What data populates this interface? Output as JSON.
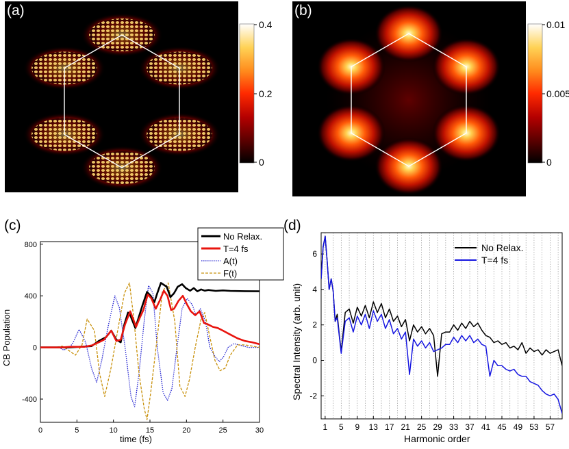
{
  "colors": {
    "black": "#000000",
    "red": "#e8140e",
    "blue_dotted": "#2020d0",
    "orange_dashed": "#c8900a",
    "blue_line": "#1515e0",
    "hexagon": "#ffffff",
    "colormap": [
      "#000000",
      "#5a0000",
      "#b40000",
      "#ff2a00",
      "#ff8a1c",
      "#ffd255",
      "#ffffff"
    ]
  },
  "panels": {
    "a": {
      "label": "(a)",
      "colorbar_ticks": [
        "0.4",
        "0.2",
        "0"
      ],
      "chart_data": {
        "type": "heatmap",
        "title": "",
        "colorbar_range": [
          0,
          0.4
        ],
        "colorbar_ticks": [
          0,
          0.2,
          0.4
        ],
        "hexagon_overlay": true,
        "texture": "fine-fringes"
      }
    },
    "b": {
      "label": "(b)",
      "colorbar_ticks": [
        "0.01",
        "0.005",
        "0"
      ],
      "chart_data": {
        "type": "heatmap",
        "title": "",
        "colorbar_range": [
          0,
          0.01
        ],
        "colorbar_ticks": [
          0,
          0.005,
          0.01
        ],
        "hexagon_overlay": true,
        "texture": "smooth"
      }
    },
    "c": {
      "label": "(c)",
      "xlabel": "time (fs)",
      "ylabel": "CB Population",
      "xticks": [
        "0",
        "5",
        "10",
        "15",
        "20",
        "25",
        "30"
      ],
      "yticks": [
        "800",
        "400",
        "0",
        "-400"
      ],
      "legend": [
        "No Relax.",
        "T=4 fs",
        "A(t)",
        "F(t)"
      ],
      "chart_data": {
        "type": "line",
        "xlim": [
          0,
          30
        ],
        "ylim": [
          -580,
          820
        ],
        "legend_position": "top-right",
        "series": [
          {
            "name": "No Relax.",
            "style": "solid",
            "x": [
              0,
              4,
              7,
              8,
              9,
              9.7,
              10.4,
              11,
              11.5,
              12,
              12.3,
              13,
              13.5,
              14,
              14.6,
              15.1,
              15.6,
              16,
              16.5,
              17.3,
              17.8,
              18.3,
              18.8,
              19.4,
              19.9,
              20.5,
              21,
              21.5,
              22,
              22.5,
              23,
              24,
              25,
              26,
              28,
              30
            ],
            "y": [
              0,
              0,
              10,
              50,
              80,
              130,
              60,
              40,
              180,
              270,
              250,
              150,
              240,
              330,
              430,
              400,
              350,
              420,
              500,
              470,
              390,
              420,
              470,
              490,
              460,
              440,
              460,
              435,
              450,
              440,
              445,
              438,
              442,
              438,
              436,
              435
            ]
          },
          {
            "name": "T=4 fs",
            "style": "solid",
            "x": [
              0,
              3,
              4,
              6,
              7,
              8,
              8.7,
              9.7,
              10.4,
              11,
              11.6,
              12.3,
              13.1,
              13.6,
              14.1,
              14.7,
              15.2,
              15.8,
              16.4,
              16.9,
              17.4,
              17.9,
              18.3,
              18.9,
              19.5,
              20.1,
              20.6,
              21.2,
              21.8,
              22.4,
              22.9,
              23.6,
              24.3,
              25,
              26,
              27,
              28,
              29,
              30
            ],
            "y": [
              0,
              0,
              5,
              5,
              15,
              40,
              60,
              130,
              50,
              60,
              180,
              280,
              160,
              230,
              290,
              410,
              380,
              300,
              370,
              440,
              400,
              290,
              300,
              360,
              400,
              330,
              280,
              250,
              280,
              190,
              180,
              160,
              150,
              130,
              100,
              70,
              50,
              40,
              25
            ]
          },
          {
            "name": "A(t)",
            "style": "dotted",
            "x": [
              0,
              2.5,
              3.2,
              4,
              4.5,
              5.3,
              6.2,
              7,
              7.7,
              8.4,
              9.3,
              10.2,
              10.8,
              11.6,
              12.4,
              12.9,
              13.5,
              14.2,
              14.8,
              15.4,
              16,
              16.8,
              17.4,
              18,
              18.7,
              19.4,
              20.1,
              20.8,
              21.3,
              21.9,
              22.6,
              23.2,
              23.9,
              24.5,
              25.1,
              25.7,
              26.5,
              27.5,
              28.5,
              30
            ],
            "y": [
              0,
              0,
              -20,
              0,
              40,
              140,
              40,
              -160,
              -270,
              -100,
              170,
              400,
              310,
              0,
              -380,
              -460,
              -200,
              200,
              480,
              420,
              0,
              -350,
              -410,
              -320,
              0,
              300,
              380,
              330,
              250,
              300,
              200,
              0,
              -70,
              -110,
              -70,
              0,
              30,
              15,
              0,
              0
            ]
          },
          {
            "name": "F(t)",
            "style": "dashed",
            "x": [
              0,
              2,
              3,
              3.8,
              4.8,
              5.7,
              6.4,
              7.4,
              8.1,
              8.8,
              9.7,
              10.8,
              11.5,
              12.2,
              12.8,
              13.5,
              14.2,
              14.6,
              15.1,
              16,
              16.7,
              17.5,
              18.4,
              19.1,
              19.8,
              20.4,
              21.2,
              22,
              22.5,
              23.2,
              23.9,
              24.6,
              25.3,
              26,
              27,
              28,
              29,
              30
            ],
            "y": [
              0,
              0,
              10,
              -20,
              -60,
              20,
              220,
              130,
              -200,
              -380,
              -150,
              200,
              420,
              500,
              220,
              -200,
              -470,
              -560,
              -350,
              80,
              430,
              500,
              200,
              -300,
              -380,
              -250,
              0,
              220,
              270,
              80,
              -100,
              -180,
              -160,
              -60,
              20,
              20,
              10,
              0
            ]
          }
        ]
      }
    },
    "d": {
      "label": "(d)",
      "xlabel": "Harmonic order",
      "ylabel": "Spectral Intensity (arb. unit)",
      "xticks": [
        "1",
        "5",
        "9",
        "13",
        "17",
        "21",
        "25",
        "29",
        "33",
        "37",
        "41",
        "45",
        "49",
        "53",
        "57"
      ],
      "yticks": [
        "6",
        "4",
        "2",
        "0",
        "-2"
      ],
      "legend": [
        "No Relax.",
        "T=4 fs"
      ],
      "chart_data": {
        "type": "line",
        "xlim": [
          0,
          60
        ],
        "ylim": [
          -3.3,
          7.2
        ],
        "grid": "dotted vertical lines at odd harmonics",
        "legend_position": "top-right",
        "series": [
          {
            "name": "No Relax.",
            "x": [
              0,
              0.5,
              1,
              1.5,
              2,
              2.5,
              3,
              3.5,
              4,
              4.5,
              5,
              6,
              7,
              8,
              9,
              10,
              11,
              12,
              13,
              14,
              15,
              16,
              17,
              18,
              19,
              20,
              21,
              22,
              23,
              24,
              25,
              26,
              27,
              28,
              29,
              30,
              31,
              32,
              33,
              34,
              35,
              36,
              37,
              38,
              39,
              40,
              41,
              42,
              43,
              44,
              45,
              46,
              47,
              48,
              49,
              50,
              51,
              52,
              53,
              54,
              55,
              56,
              57,
              58,
              59,
              60
            ],
            "y": [
              4.6,
              6.4,
              7.0,
              5.6,
              4.0,
              4.6,
              3.9,
              2.2,
              2.6,
              1.5,
              0.5,
              2.7,
              2.9,
              2.1,
              3.0,
              2.5,
              3.1,
              2.4,
              3.3,
              2.7,
              3.2,
              2.4,
              2.9,
              2.2,
              2.5,
              1.9,
              2.3,
              1.1,
              2.0,
              1.6,
              1.9,
              1.5,
              1.8,
              1.4,
              -0.9,
              1.5,
              1.6,
              1.6,
              2.0,
              1.7,
              2.1,
              1.8,
              2.2,
              1.9,
              2.1,
              1.7,
              1.4,
              1.3,
              1.0,
              1.1,
              0.9,
              1.0,
              0.7,
              0.8,
              0.6,
              1.0,
              0.4,
              0.7,
              0.5,
              0.6,
              0.3,
              0.6,
              0.4,
              0.5,
              0.6,
              -0.3
            ]
          },
          {
            "name": "T=4 fs",
            "x": [
              0,
              0.5,
              1,
              1.5,
              2,
              2.5,
              3,
              3.5,
              4,
              4.5,
              5,
              6,
              7,
              8,
              9,
              10,
              11,
              12,
              13,
              14,
              15,
              16,
              17,
              18,
              19,
              20,
              21,
              22,
              23,
              24,
              25,
              26,
              27,
              28,
              29,
              30,
              31,
              32,
              33,
              34,
              35,
              36,
              37,
              38,
              39,
              40,
              41,
              42,
              43,
              44,
              45,
              46,
              47,
              48,
              49,
              50,
              51,
              52,
              53,
              54,
              55,
              56,
              57,
              58,
              59,
              60
            ],
            "y": [
              4.6,
              6.4,
              7.0,
              5.6,
              4.0,
              4.6,
              3.9,
              2.2,
              2.4,
              1.4,
              0.4,
              2.2,
              2.4,
              1.6,
              2.5,
              2.0,
              2.6,
              1.8,
              2.8,
              2.2,
              2.6,
              1.8,
              2.3,
              1.5,
              1.8,
              1.2,
              1.6,
              -0.8,
              1.2,
              0.8,
              1.1,
              0.7,
              1.0,
              0.5,
              0.6,
              0.7,
              0.9,
              0.9,
              1.3,
              1.0,
              1.4,
              1.1,
              1.4,
              1.0,
              1.2,
              0.9,
              0.8,
              -0.9,
              0.0,
              -0.3,
              -0.3,
              -0.5,
              -0.6,
              -0.5,
              -0.8,
              -0.9,
              -0.9,
              -1.2,
              -1.3,
              -1.4,
              -1.7,
              -1.9,
              -2.0,
              -1.9,
              -2.2,
              -3.0
            ]
          }
        ]
      }
    }
  }
}
